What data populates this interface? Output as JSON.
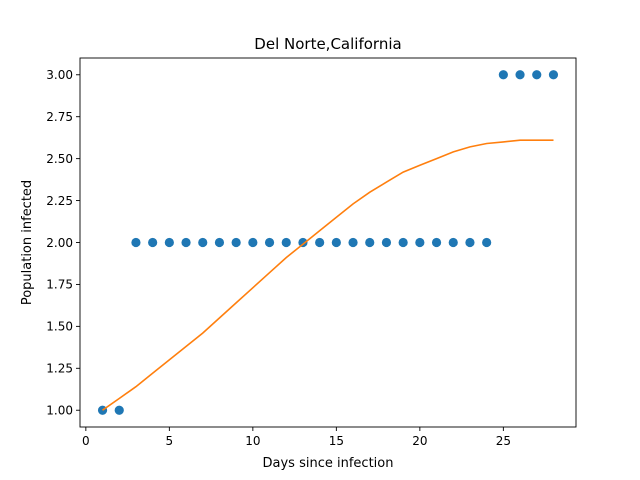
{
  "chart_data": {
    "type": "scatter",
    "title": "Del Norte,California",
    "xlabel": "Days since infection",
    "ylabel": "Population infected",
    "xlim": [
      -0.35,
      29.35
    ],
    "ylim": [
      0.9,
      3.1
    ],
    "xticks": [
      0,
      5,
      10,
      15,
      20,
      25
    ],
    "xtick_labels": [
      "0",
      "5",
      "10",
      "15",
      "20",
      "25"
    ],
    "yticks": [
      1.0,
      1.25,
      1.5,
      1.75,
      2.0,
      2.25,
      2.5,
      2.75,
      3.0
    ],
    "ytick_labels": [
      "1.00",
      "1.25",
      "1.50",
      "1.75",
      "2.00",
      "2.25",
      "2.50",
      "2.75",
      "3.00"
    ],
    "grid": false,
    "series": [
      {
        "kind": "scatter",
        "color": "#1f77b4",
        "x": [
          1,
          2,
          3,
          4,
          5,
          6,
          7,
          8,
          9,
          10,
          11,
          12,
          13,
          14,
          15,
          16,
          17,
          18,
          19,
          20,
          21,
          22,
          23,
          24,
          25,
          26,
          27,
          28
        ],
        "y": [
          1,
          1,
          2,
          2,
          2,
          2,
          2,
          2,
          2,
          2,
          2,
          2,
          2,
          2,
          2,
          2,
          2,
          2,
          2,
          2,
          2,
          2,
          2,
          2,
          3,
          3,
          3,
          3
        ]
      },
      {
        "kind": "line",
        "color": "#ff7f0e",
        "x": [
          1,
          2,
          3,
          4,
          5,
          6,
          7,
          8,
          9,
          10,
          11,
          12,
          13,
          14,
          15,
          16,
          17,
          18,
          19,
          20,
          21,
          22,
          23,
          24,
          25,
          26,
          27,
          28
        ],
        "y": [
          1.0,
          1.07,
          1.14,
          1.22,
          1.3,
          1.38,
          1.46,
          1.55,
          1.64,
          1.73,
          1.82,
          1.91,
          1.99,
          2.07,
          2.15,
          2.23,
          2.3,
          2.36,
          2.42,
          2.46,
          2.5,
          2.54,
          2.57,
          2.59,
          2.6,
          2.61,
          2.61,
          2.61
        ]
      }
    ]
  }
}
